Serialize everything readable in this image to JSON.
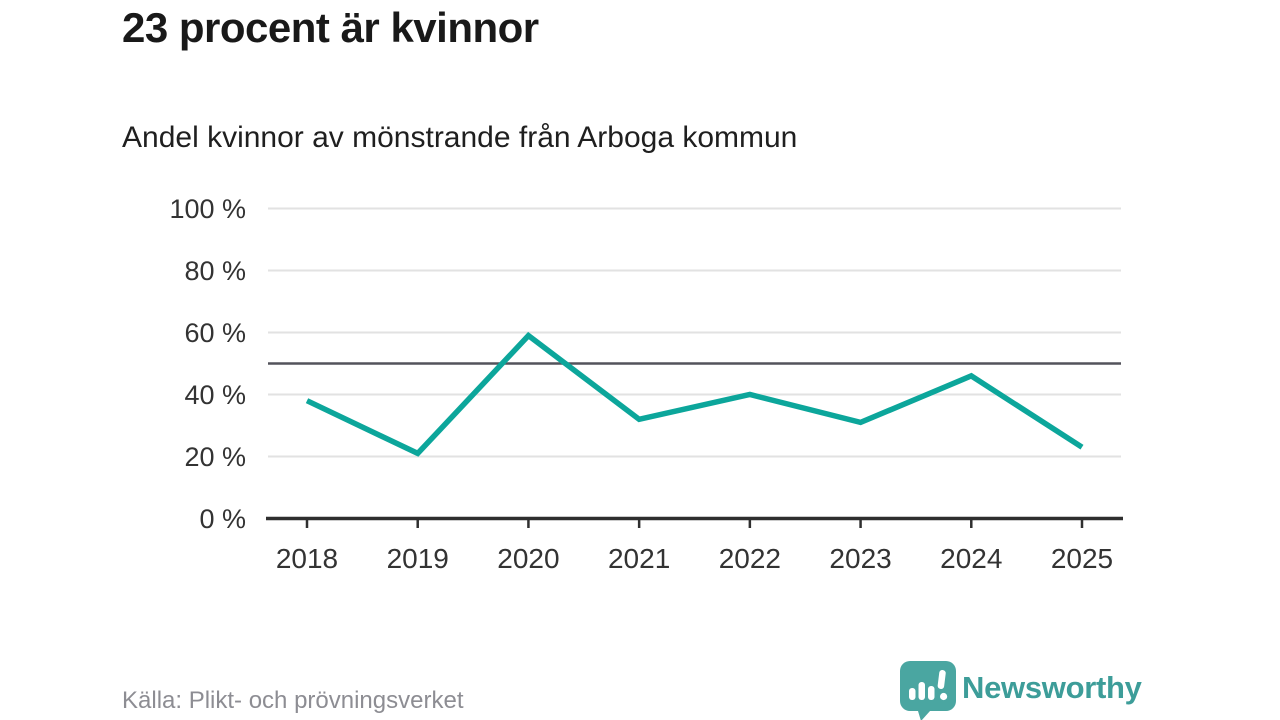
{
  "header": {
    "title": "23 procent är kvinnor",
    "subtitle": "Andel kvinnor av mönstrande från Arboga kommun"
  },
  "footer": {
    "source": "Källa: Plikt- och prövningsverket",
    "brand": "Newsworthy"
  },
  "chart_data": {
    "type": "line",
    "x": [
      "2018",
      "2019",
      "2020",
      "2021",
      "2022",
      "2023",
      "2024",
      "2025"
    ],
    "series": [
      {
        "name": "Andel kvinnor av mönstrande",
        "values": [
          38,
          21,
          59,
          32,
          40,
          31,
          46,
          23
        ]
      }
    ],
    "reference_line": 50,
    "ylim": [
      0,
      100
    ],
    "yticks": [
      0,
      20,
      40,
      60,
      80,
      100
    ],
    "ytick_labels": [
      "0 %",
      "20 %",
      "40 %",
      "60 %",
      "80 %",
      "100 %"
    ],
    "grid": "horizontal",
    "legend": "none",
    "title": "23 procent är kvinnor",
    "xlabel": "",
    "ylabel": ""
  },
  "colors": {
    "line": "#0CA69B",
    "reference": "#53535B",
    "grid": "#E2E2E2",
    "axis": "#2F2F2F",
    "tick_label": "#333333",
    "logo_bubble": "#4AA6A1",
    "brand_text": "#3D9D99"
  }
}
